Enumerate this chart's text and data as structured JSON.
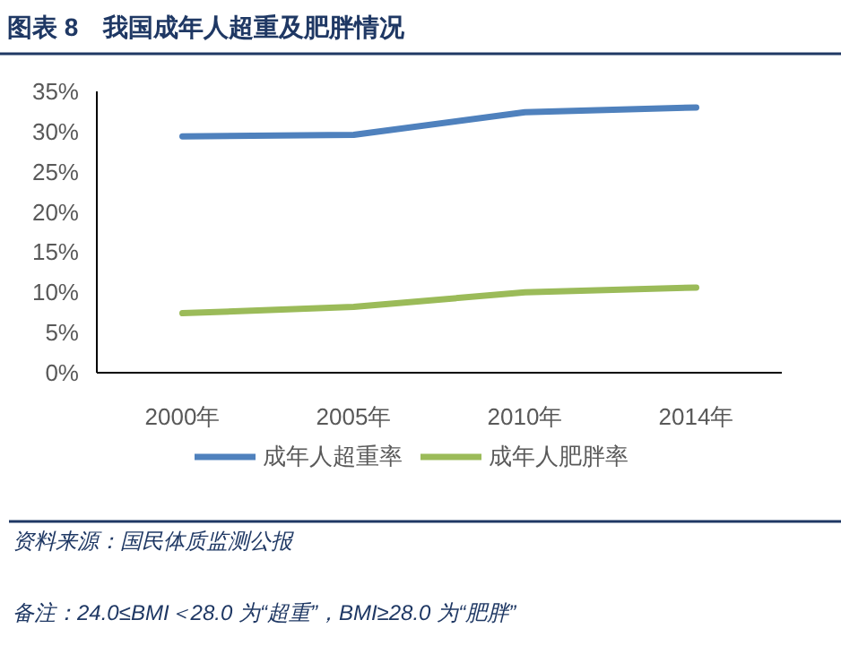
{
  "chart_data": {
    "type": "line",
    "title": "图表 8　我国成年人超重及肥胖情况",
    "categories": [
      "2000年",
      "2005年",
      "2010年",
      "2014年"
    ],
    "series": [
      {
        "name": "成年人超重率",
        "color": "#4f81bd",
        "values": [
          29.4,
          29.6,
          32.4,
          33.0
        ]
      },
      {
        "name": "成年人肥胖率",
        "color": "#9bbb59",
        "values": [
          7.4,
          8.2,
          10.0,
          10.6
        ]
      }
    ],
    "ylim": [
      0,
      35
    ],
    "yticks": [
      {
        "value": 0,
        "label": "0%"
      },
      {
        "value": 5,
        "label": "5%"
      },
      {
        "value": 10,
        "label": "10%"
      },
      {
        "value": 15,
        "label": "15%"
      },
      {
        "value": 20,
        "label": "20%"
      },
      {
        "value": 25,
        "label": "25%"
      },
      {
        "value": 30,
        "label": "30%"
      },
      {
        "value": 35,
        "label": "35%"
      }
    ],
    "legend": "bottom",
    "grid": false,
    "marker": "none",
    "line_style": "solid",
    "annotations": [
      "资料来源：国民体质监测公报",
      "备注：24.0≤BMI＜28.0 为“超重”，BMI≥28.0 为“肥胖”"
    ]
  }
}
